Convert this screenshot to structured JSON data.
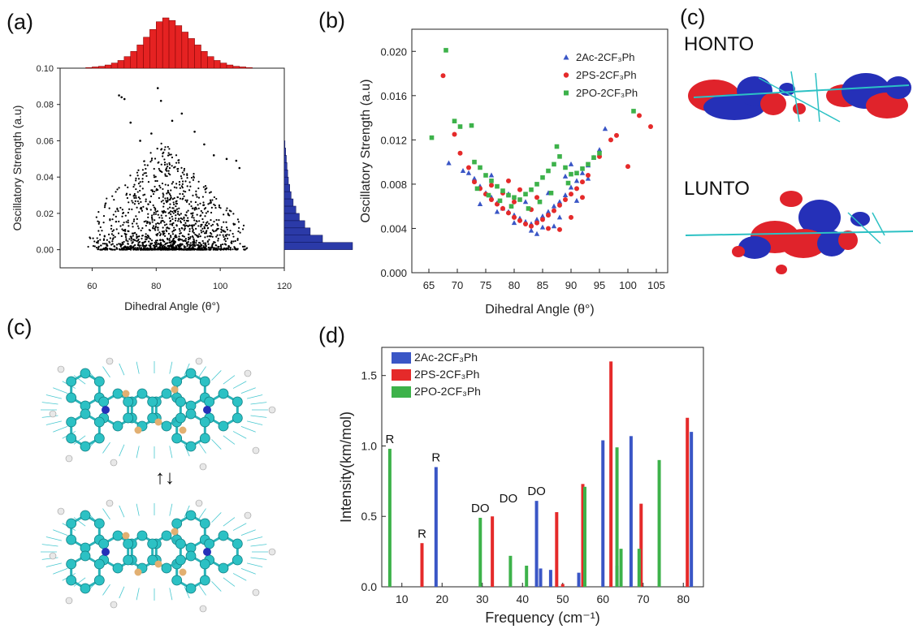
{
  "labels": {
    "a": "(a)",
    "b": "(b)",
    "c_top": "(c)",
    "c_left": "(c)",
    "d": "(d)"
  },
  "orbital": {
    "honto": "HONTO",
    "lunto": "LUNTO"
  },
  "molecule": {
    "exchange_symbol": "↑↓"
  },
  "colors": {
    "blue": "#3a56c6",
    "red": "#e52a2a",
    "green": "#3db24a",
    "hist_red": "#e52222",
    "hist_blue": "#2b3aa8",
    "orbital_red": "#e0232b",
    "orbital_blue": "#2530b8",
    "atom_cyan": "#2cc1c4"
  },
  "chart_data": [
    {
      "id": "a",
      "type": "scatter",
      "xlabel": "Dihedral Angle (θ°)",
      "ylabel": "Oscillatory Strength (a.u)",
      "xlim": [
        50,
        120
      ],
      "ylim": [
        -0.01,
        0.1
      ],
      "xticks": [
        "60",
        "80",
        "100",
        "120"
      ],
      "yticks": [
        "0.00",
        "0.02",
        "0.04",
        "0.06",
        "0.08",
        "0.10"
      ],
      "series": [
        {
          "values_note": "",
          "points": [
            [
              68.4,
              0.085
            ],
            [
              69.2,
              0.084
            ],
            [
              70.1,
              0.083
            ],
            [
              72.0,
              0.07
            ],
            [
              75.0,
              0.06
            ],
            [
              78.5,
              0.064
            ],
            [
              80.5,
              0.089
            ],
            [
              81.5,
              0.082
            ],
            [
              85.0,
              0.071
            ],
            [
              88.0,
              0.075
            ],
            [
              92.0,
              0.065
            ],
            [
              95.0,
              0.058
            ],
            [
              98.0,
              0.052
            ],
            [
              102.0,
              0.05
            ],
            [
              105.0,
              0.049
            ],
            [
              106.0,
              0.045
            ]
          ]
        }
      ],
      "marginal_x": {
        "bins": [
          58,
          60,
          62,
          64,
          66,
          68,
          70,
          72,
          74,
          76,
          78,
          80,
          82,
          84,
          86,
          88,
          90,
          92,
          94,
          96,
          98,
          100,
          102,
          104,
          106,
          108,
          110
        ],
        "counts": [
          1,
          2,
          3,
          5,
          8,
          12,
          18,
          26,
          36,
          48,
          60,
          72,
          78,
          74,
          66,
          56,
          46,
          36,
          26,
          18,
          12,
          8,
          5,
          3,
          2,
          1
        ]
      },
      "marginal_y": {
        "bins": [
          0.0,
          0.004,
          0.008,
          0.012,
          0.016,
          0.02,
          0.024,
          0.028,
          0.032,
          0.036,
          0.04,
          0.044,
          0.048,
          0.052,
          0.056,
          0.06
        ],
        "counts": [
          100,
          56,
          38,
          30,
          22,
          17,
          13,
          10,
          8,
          6,
          5,
          4,
          3,
          2,
          1
        ]
      }
    },
    {
      "id": "b",
      "type": "scatter",
      "xlabel": "Dihedral Angle (θ°)",
      "ylabel": "Oscillatory Strength (a.u)",
      "xlim": [
        62,
        107
      ],
      "ylim": [
        0.0,
        0.022
      ],
      "xticks": [
        "65",
        "70",
        "75",
        "80",
        "85",
        "90",
        "95",
        "100",
        "105"
      ],
      "yticks": [
        "0.000",
        "0.004",
        "0.008",
        "0.012",
        "0.016",
        "0.020"
      ],
      "legend_position": "top-right",
      "series": [
        {
          "name": "2Ac-2CF3Ph",
          "marker": "triangle",
          "color": "#3a56c6",
          "points": [
            [
              68.5,
              0.0099
            ],
            [
              71,
              0.0092
            ],
            [
              72,
              0.009
            ],
            [
              73,
              0.0085
            ],
            [
              74,
              0.0078
            ],
            [
              75,
              0.0072
            ],
            [
              76,
              0.0068
            ],
            [
              77,
              0.0063
            ],
            [
              78,
              0.0058
            ],
            [
              79,
              0.0055
            ],
            [
              80,
              0.0052
            ],
            [
              81,
              0.0049
            ],
            [
              82,
              0.0046
            ],
            [
              83,
              0.0044
            ],
            [
              84,
              0.0048
            ],
            [
              85,
              0.0051
            ],
            [
              86,
              0.0055
            ],
            [
              87,
              0.006
            ],
            [
              88,
              0.0064
            ],
            [
              89,
              0.007
            ],
            [
              90,
              0.0077
            ],
            [
              91,
              0.0083
            ],
            [
              92,
              0.009
            ],
            [
              93,
              0.0097
            ],
            [
              94,
              0.0104
            ],
            [
              95,
              0.0111
            ],
            [
              96,
              0.013
            ],
            [
              74,
              0.0062
            ],
            [
              77,
              0.0055
            ],
            [
              80,
              0.0045
            ],
            [
              83,
              0.0038
            ],
            [
              85,
              0.0041
            ],
            [
              88,
              0.005
            ],
            [
              91,
              0.0065
            ],
            [
              93,
              0.0085
            ],
            [
              76,
              0.0088
            ],
            [
              79,
              0.0071
            ],
            [
              82,
              0.0064
            ],
            [
              86,
              0.0072
            ],
            [
              89,
              0.0087
            ],
            [
              90,
              0.0098
            ],
            [
              84,
              0.0035
            ],
            [
              87,
              0.0042
            ]
          ]
        },
        {
          "name": "2PS-2CF3Ph",
          "marker": "circle",
          "color": "#e52a2a",
          "points": [
            [
              67.5,
              0.0178
            ],
            [
              69.5,
              0.0125
            ],
            [
              70.5,
              0.0108
            ],
            [
              72,
              0.0095
            ],
            [
              73,
              0.0082
            ],
            [
              74,
              0.0076
            ],
            [
              75,
              0.0071
            ],
            [
              76,
              0.0066
            ],
            [
              77,
              0.0062
            ],
            [
              78,
              0.0058
            ],
            [
              79,
              0.0054
            ],
            [
              80,
              0.005
            ],
            [
              81,
              0.0047
            ],
            [
              82,
              0.0044
            ],
            [
              83,
              0.0042
            ],
            [
              84,
              0.0045
            ],
            [
              85,
              0.0048
            ],
            [
              86,
              0.0052
            ],
            [
              87,
              0.0056
            ],
            [
              88,
              0.0061
            ],
            [
              89,
              0.0066
            ],
            [
              90,
              0.0071
            ],
            [
              91,
              0.0076
            ],
            [
              92,
              0.0082
            ],
            [
              93,
              0.0088
            ],
            [
              95,
              0.0105
            ],
            [
              97,
              0.012
            ],
            [
              98,
              0.0124
            ],
            [
              100,
              0.0096
            ],
            [
              102,
              0.0142
            ],
            [
              104,
              0.0132
            ],
            [
              76,
              0.0079
            ],
            [
              78,
              0.0072
            ],
            [
              80,
              0.0064
            ],
            [
              83,
              0.0057
            ],
            [
              86,
              0.004
            ],
            [
              88,
              0.0039
            ],
            [
              90,
              0.005
            ],
            [
              92,
              0.0068
            ],
            [
              79,
              0.0083
            ],
            [
              81,
              0.0075
            ],
            [
              84,
              0.0068
            ]
          ]
        },
        {
          "name": "2PO-2CF3Ph",
          "marker": "square",
          "color": "#3db24a",
          "points": [
            [
              65.5,
              0.0122
            ],
            [
              68,
              0.0201
            ],
            [
              69.5,
              0.0137
            ],
            [
              70.5,
              0.0132
            ],
            [
              72.5,
              0.0133
            ],
            [
              73,
              0.01
            ],
            [
              74,
              0.0095
            ],
            [
              75,
              0.0088
            ],
            [
              76,
              0.0083
            ],
            [
              77,
              0.0078
            ],
            [
              78,
              0.0074
            ],
            [
              79,
              0.007
            ],
            [
              80,
              0.0068
            ],
            [
              81,
              0.0066
            ],
            [
              82,
              0.0071
            ],
            [
              83,
              0.0075
            ],
            [
              84,
              0.008
            ],
            [
              85,
              0.0086
            ],
            [
              86,
              0.0092
            ],
            [
              87,
              0.0098
            ],
            [
              87.5,
              0.0114
            ],
            [
              88,
              0.0105
            ],
            [
              89,
              0.0095
            ],
            [
              90,
              0.0089
            ],
            [
              91,
              0.009
            ],
            [
              92,
              0.0094
            ],
            [
              93,
              0.0098
            ],
            [
              94,
              0.0104
            ],
            [
              95,
              0.0108
            ],
            [
              101,
              0.0146
            ],
            [
              73.5,
              0.0076
            ],
            [
              75.5,
              0.007
            ],
            [
              77.5,
              0.0065
            ],
            [
              79.5,
              0.006
            ],
            [
              82.5,
              0.0058
            ],
            [
              84.5,
              0.0064
            ],
            [
              86.5,
              0.0072
            ],
            [
              89.5,
              0.0081
            ]
          ]
        }
      ]
    },
    {
      "id": "d",
      "type": "bar",
      "xlabel": "Frequency (cm⁻¹)",
      "ylabel": "Intensity(km/mol)",
      "xlim": [
        5,
        85
      ],
      "ylim": [
        0.0,
        1.7
      ],
      "xticks": [
        "10",
        "20",
        "30",
        "40",
        "50",
        "60",
        "70",
        "80"
      ],
      "yticks": [
        "0.0",
        "0.5",
        "1.0",
        "1.5"
      ],
      "legend_position": "top-left",
      "series": [
        {
          "name": "2Ac-2CF3Ph",
          "color": "#3a56c6",
          "points": [
            [
              18.5,
              0.85
            ],
            [
              43.5,
              0.61
            ],
            [
              44.5,
              0.13
            ],
            [
              47,
              0.12
            ],
            [
              54,
              0.1
            ],
            [
              60,
              1.04
            ],
            [
              67,
              1.07
            ],
            [
              82,
              1.1
            ],
            [
              63.5,
              0.15
            ]
          ]
        },
        {
          "name": "2PS-2CF3Ph",
          "color": "#e52a2a",
          "points": [
            [
              15,
              0.31
            ],
            [
              32.5,
              0.5
            ],
            [
              48.5,
              0.53
            ],
            [
              50,
              0.02
            ],
            [
              55,
              0.73
            ],
            [
              62,
              1.6
            ],
            [
              69.5,
              0.59
            ],
            [
              81,
              1.2
            ]
          ]
        },
        {
          "name": "2PO-2CF3Ph",
          "color": "#3db24a",
          "points": [
            [
              7,
              0.98
            ],
            [
              29.5,
              0.49
            ],
            [
              37,
              0.22
            ],
            [
              41,
              0.15
            ],
            [
              55.5,
              0.71
            ],
            [
              63.5,
              0.99
            ],
            [
              64.5,
              0.27
            ],
            [
              69,
              0.27
            ],
            [
              74,
              0.9
            ]
          ]
        }
      ],
      "annotations": [
        {
          "text": "R",
          "x": 7,
          "y": 1.02
        },
        {
          "text": "R",
          "x": 15,
          "y": 0.35
        },
        {
          "text": "R",
          "x": 18.5,
          "y": 0.89
        },
        {
          "text": "DO",
          "x": 29.5,
          "y": 0.53
        },
        {
          "text": "DO",
          "x": 36.5,
          "y": 0.6
        },
        {
          "text": "DO",
          "x": 43.5,
          "y": 0.65
        }
      ]
    }
  ]
}
